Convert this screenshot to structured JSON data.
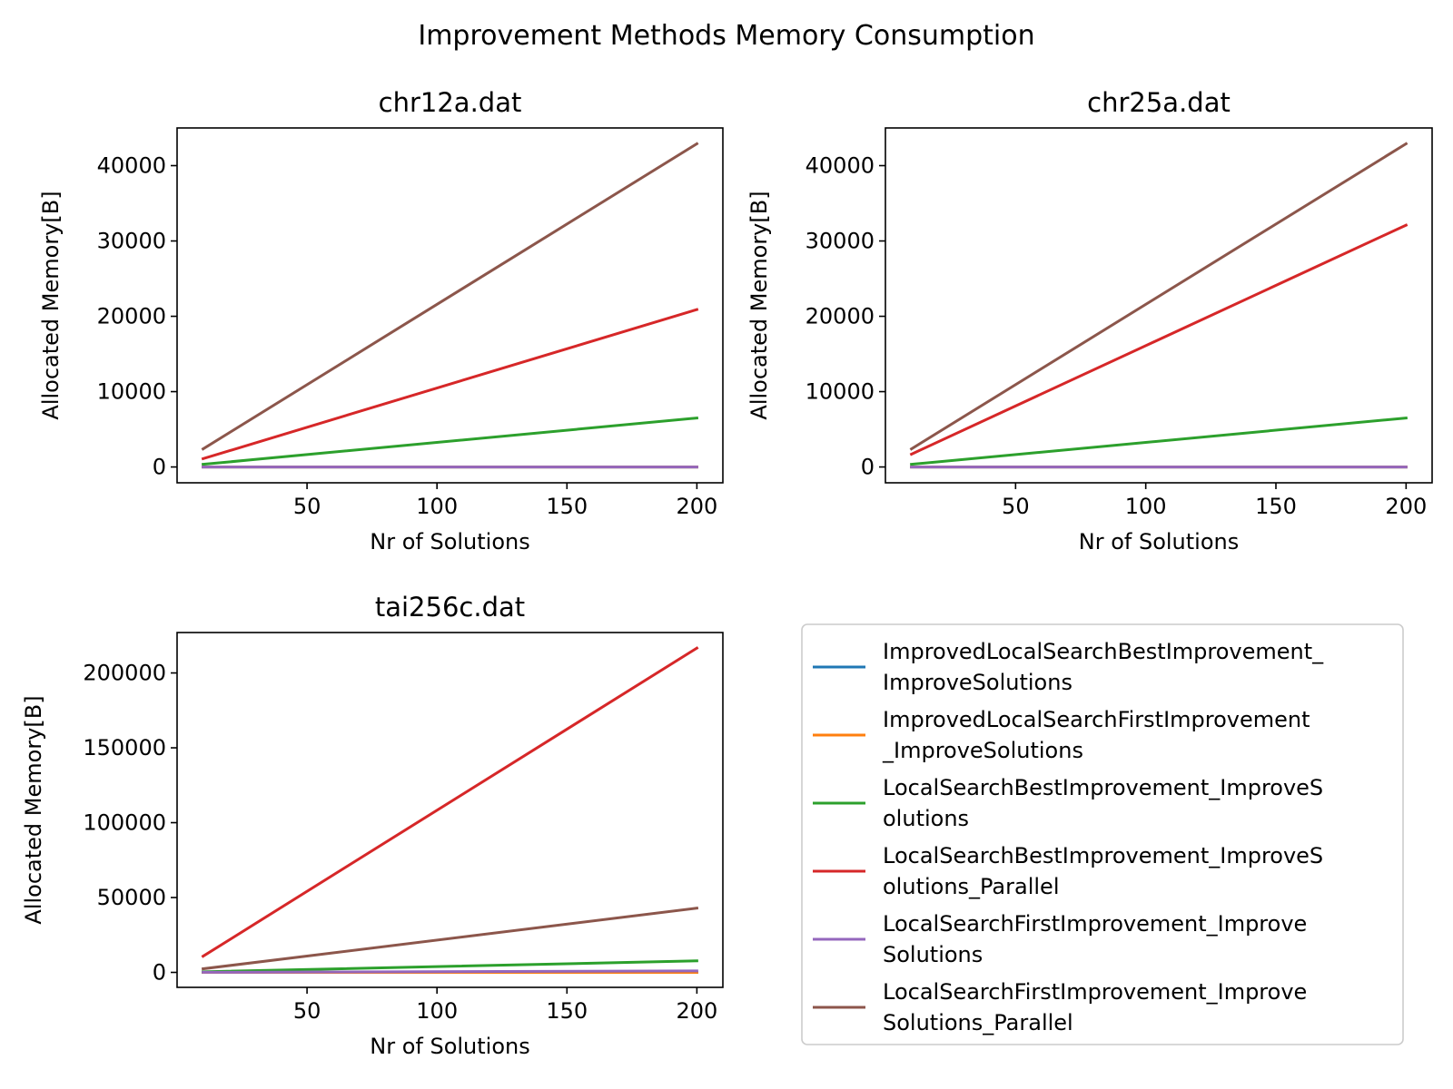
{
  "figure_title": "Improvement Methods Memory Consumption",
  "chart_data": [
    {
      "type": "line",
      "title": "chr12a.dat",
      "xlabel": "Nr of Solutions",
      "ylabel": "Allocated Memory[B]",
      "xlim": [
        0,
        210
      ],
      "ylim": [
        -2100,
        45000
      ],
      "xticks": [
        50,
        100,
        150,
        200
      ],
      "yticks": [
        0,
        10000,
        20000,
        30000,
        40000
      ],
      "x": [
        10,
        200
      ],
      "series": [
        {
          "name": "ImprovedLocalSearchBestImprovement_ImproveSolutions",
          "color": "#1f77b4",
          "values": [
            0,
            0
          ]
        },
        {
          "name": "ImprovedLocalSearchFirstImprovement_ImproveSolutions",
          "color": "#ff7f0e",
          "values": [
            0,
            0
          ]
        },
        {
          "name": "LocalSearchBestImprovement_ImproveSolutions",
          "color": "#2ca02c",
          "values": [
            350,
            6500
          ]
        },
        {
          "name": "LocalSearchBestImprovement_ImproveSolutions_Parallel",
          "color": "#d62728",
          "values": [
            1100,
            20900
          ]
        },
        {
          "name": "LocalSearchFirstImprovement_ImproveSolutions",
          "color": "#9467bd",
          "values": [
            0,
            0
          ]
        },
        {
          "name": "LocalSearchFirstImprovement_ImproveSolutions_Parallel",
          "color": "#8c564b",
          "values": [
            2400,
            42900
          ]
        }
      ],
      "grid": false,
      "legend": "none"
    },
    {
      "type": "line",
      "title": "chr25a.dat",
      "xlabel": "Nr of Solutions",
      "ylabel": "Allocated Memory[B]",
      "xlim": [
        0,
        210
      ],
      "ylim": [
        -2100,
        45000
      ],
      "xticks": [
        50,
        100,
        150,
        200
      ],
      "yticks": [
        0,
        10000,
        20000,
        30000,
        40000
      ],
      "x": [
        10,
        200
      ],
      "series": [
        {
          "name": "ImprovedLocalSearchBestImprovement_ImproveSolutions",
          "color": "#1f77b4",
          "values": [
            0,
            0
          ]
        },
        {
          "name": "ImprovedLocalSearchFirstImprovement_ImproveSolutions",
          "color": "#ff7f0e",
          "values": [
            0,
            0
          ]
        },
        {
          "name": "LocalSearchBestImprovement_ImproveSolutions",
          "color": "#2ca02c",
          "values": [
            350,
            6500
          ]
        },
        {
          "name": "LocalSearchBestImprovement_ImproveSolutions_Parallel",
          "color": "#d62728",
          "values": [
            1700,
            32100
          ]
        },
        {
          "name": "LocalSearchFirstImprovement_ImproveSolutions",
          "color": "#9467bd",
          "values": [
            0,
            0
          ]
        },
        {
          "name": "LocalSearchFirstImprovement_ImproveSolutions_Parallel",
          "color": "#8c564b",
          "values": [
            2400,
            42900
          ]
        }
      ],
      "grid": false,
      "legend": "none"
    },
    {
      "type": "line",
      "title": "tai256c.dat",
      "xlabel": "Nr of Solutions",
      "ylabel": "Allocated Memory[B]",
      "xlim": [
        0,
        210
      ],
      "ylim": [
        -10000,
        227000
      ],
      "xticks": [
        50,
        100,
        150,
        200
      ],
      "yticks": [
        0,
        50000,
        100000,
        150000,
        200000
      ],
      "x": [
        10,
        200
      ],
      "series": [
        {
          "name": "ImprovedLocalSearchBestImprovement_ImproveSolutions",
          "color": "#1f77b4",
          "values": [
            0,
            0
          ]
        },
        {
          "name": "ImprovedLocalSearchFirstImprovement_ImproveSolutions",
          "color": "#ff7f0e",
          "values": [
            0,
            0
          ]
        },
        {
          "name": "LocalSearchBestImprovement_ImproveSolutions",
          "color": "#2ca02c",
          "values": [
            400,
            7700
          ]
        },
        {
          "name": "LocalSearchBestImprovement_ImproveSolutions_Parallel",
          "color": "#d62728",
          "values": [
            10800,
            216600
          ]
        },
        {
          "name": "LocalSearchFirstImprovement_ImproveSolutions",
          "color": "#9467bd",
          "values": [
            50,
            1000
          ]
        },
        {
          "name": "LocalSearchFirstImprovement_ImproveSolutions_Parallel",
          "color": "#8c564b",
          "values": [
            2400,
            42900
          ]
        }
      ],
      "grid": false,
      "legend": "none"
    }
  ],
  "legend": {
    "placement": "lower-right panel",
    "entries": [
      {
        "lines": [
          "ImprovedLocalSearchBestImprovement_",
          "ImproveSolutions"
        ],
        "color": "#1f77b4"
      },
      {
        "lines": [
          "ImprovedLocalSearchFirstImprovement",
          "_ImproveSolutions"
        ],
        "color": "#ff7f0e"
      },
      {
        "lines": [
          "LocalSearchBestImprovement_ImproveS",
          "olutions"
        ],
        "color": "#2ca02c"
      },
      {
        "lines": [
          "LocalSearchBestImprovement_ImproveS",
          "olutions_Parallel"
        ],
        "color": "#d62728"
      },
      {
        "lines": [
          "LocalSearchFirstImprovement_Improve",
          "Solutions"
        ],
        "color": "#9467bd"
      },
      {
        "lines": [
          "LocalSearchFirstImprovement_Improve",
          "Solutions_Parallel"
        ],
        "color": "#8c564b"
      }
    ]
  }
}
